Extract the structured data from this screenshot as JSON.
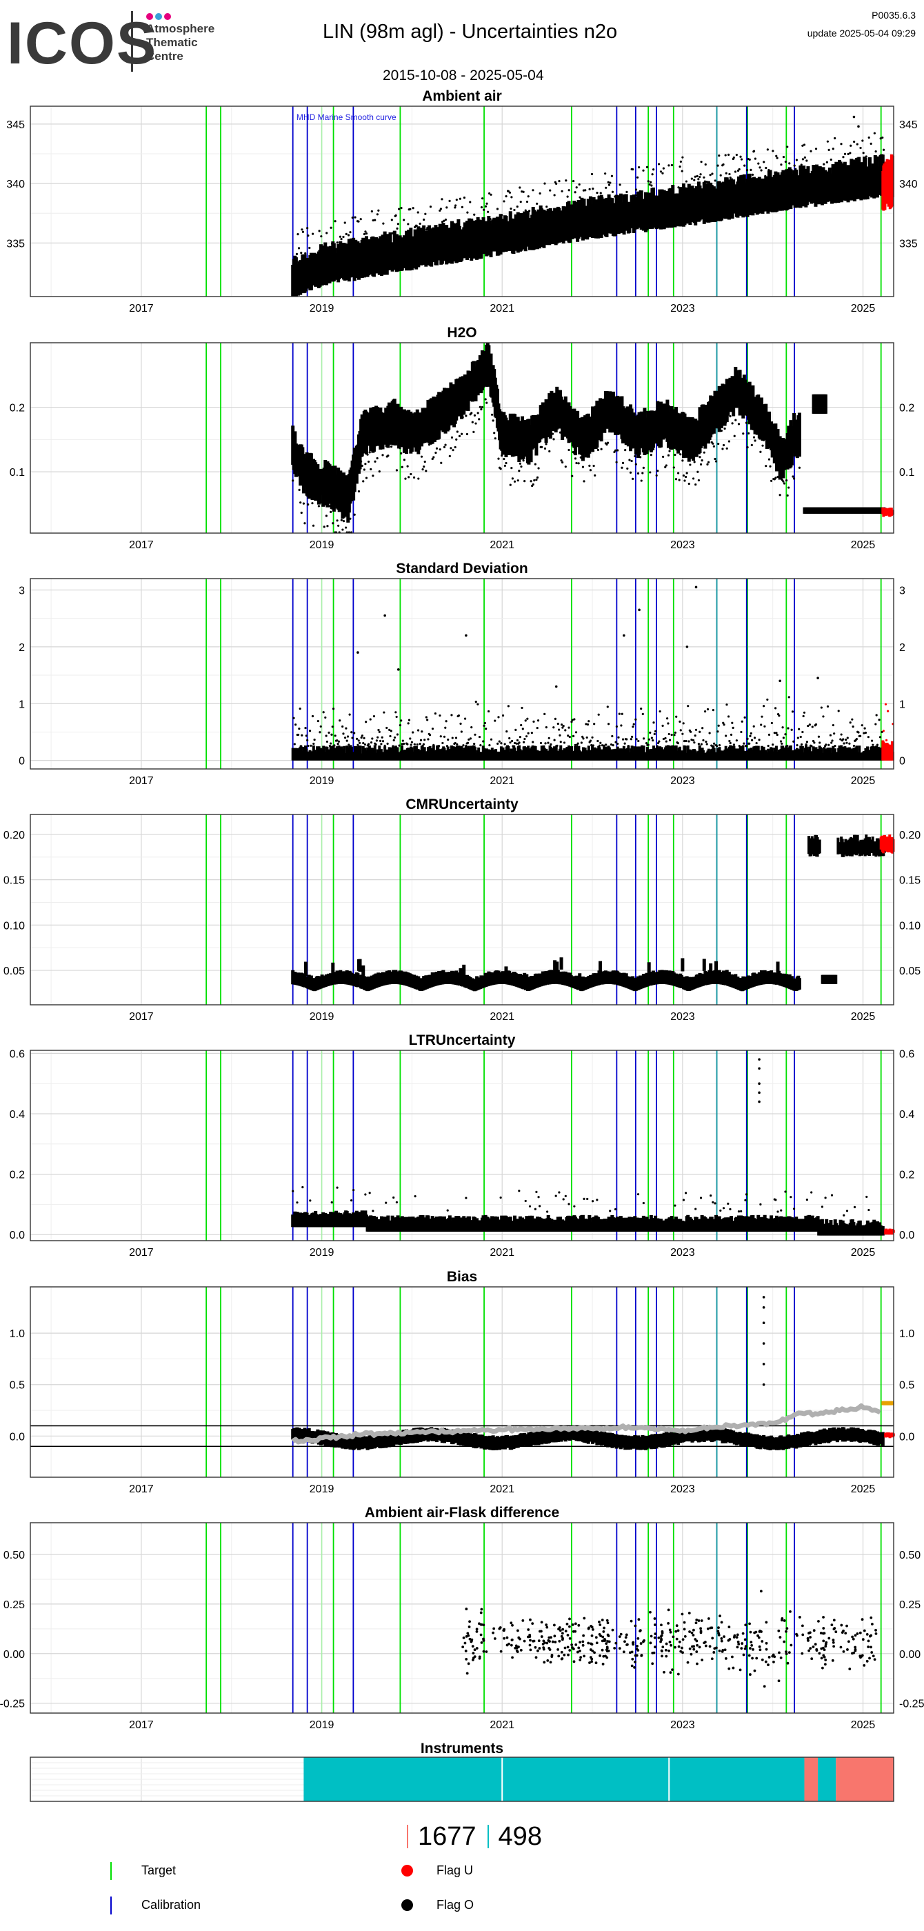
{
  "header": {
    "logo_text": "ICOS",
    "logo_sub": [
      "Atmosphere",
      "Thematic",
      "Centre"
    ],
    "logo_dot_colors": [
      "#e6007e",
      "#3aa0d8",
      "#e6007e"
    ],
    "title": "LIN  (98m agl) - Uncertainties n2o",
    "date_range": "2015-10-08 - 2025-05-04",
    "version": "P0035.6.3",
    "update_label": "update  2025-05-04 09:29"
  },
  "colors": {
    "target": "#00e000",
    "calibration": "#0000cc",
    "flag_u": "#ff0000",
    "flag_o": "#000000",
    "bias_gray": "#b0b0b0",
    "bias_orange": "#e6a000",
    "instrument_teal": "#00bfc4",
    "instrument_salmon": "#f8766d",
    "grid": "#e3e3e3"
  },
  "x_axis": {
    "range": [
      2015.77,
      2025.34
    ],
    "ticks": [
      2017,
      2019,
      2021,
      2023,
      2025
    ],
    "tick_labels": [
      "2017",
      "2019",
      "2021",
      "2023",
      "2025"
    ]
  },
  "events": {
    "target": [
      2017.72,
      2017.88,
      2019.13,
      2019.87,
      2020.8,
      2021.77,
      2022.62,
      2022.9,
      2023.72,
      2024.15,
      2025.2
    ],
    "calibration": [
      2018.68,
      2018.84,
      2019.35,
      2022.27,
      2022.48,
      2022.71,
      2023.38,
      2023.71,
      2024.24
    ],
    "target_faint": [
      2019.0
    ],
    "teal": [
      2023.38
    ]
  },
  "chart_data": [
    {
      "type": "scatter",
      "title": "Ambient air",
      "ylim": [
        330.5,
        346.5
      ],
      "y_ticks": [
        335,
        340,
        345
      ],
      "y_tick_labels": [
        "335",
        "340",
        "345"
      ],
      "annotation": "MHD Marine Smooth curve",
      "kind": "ambient",
      "trend": [
        [
          2018.68,
          332.0
        ],
        [
          2019.0,
          333.0
        ],
        [
          2020.0,
          334.4
        ],
        [
          2021.0,
          335.6
        ],
        [
          2022.0,
          337.0
        ],
        [
          2023.0,
          338.0
        ],
        [
          2024.0,
          339.2
        ],
        [
          2025.0,
          340.3
        ],
        [
          2025.25,
          340.6
        ]
      ],
      "flag_u_range": [
        2025.22,
        2025.34,
        337.5,
        342.5
      ]
    },
    {
      "type": "scatter",
      "title": "H2O",
      "ylim": [
        0.005,
        0.3
      ],
      "y_ticks": [
        0.1,
        0.2
      ],
      "y_tick_labels": [
        "0.1",
        "0.2"
      ],
      "kind": "h2o",
      "trend": [
        [
          2018.68,
          0.14
        ],
        [
          2018.8,
          0.1
        ],
        [
          2019.1,
          0.08
        ],
        [
          2019.3,
          0.06
        ],
        [
          2019.45,
          0.16
        ],
        [
          2019.8,
          0.18
        ],
        [
          2020.0,
          0.16
        ],
        [
          2020.4,
          0.2
        ],
        [
          2020.7,
          0.24
        ],
        [
          2020.85,
          0.27
        ],
        [
          2021.0,
          0.16
        ],
        [
          2021.3,
          0.15
        ],
        [
          2021.6,
          0.2
        ],
        [
          2021.9,
          0.15
        ],
        [
          2022.2,
          0.2
        ],
        [
          2022.5,
          0.16
        ],
        [
          2022.8,
          0.18
        ],
        [
          2023.1,
          0.15
        ],
        [
          2023.4,
          0.2
        ],
        [
          2023.6,
          0.23
        ],
        [
          2023.9,
          0.18
        ],
        [
          2024.1,
          0.12
        ],
        [
          2024.25,
          0.16
        ]
      ],
      "late_low": [
        2024.35,
        2025.34,
        0.035,
        0.045
      ],
      "late_high": [
        2024.45,
        2024.6,
        0.19,
        0.22
      ],
      "flag_u_range": [
        2025.22,
        2025.34,
        0.03,
        0.045
      ]
    },
    {
      "type": "scatter",
      "title": "Standard Deviation",
      "ylim": [
        -0.15,
        3.2
      ],
      "y_ticks": [
        0,
        1,
        2,
        3
      ],
      "y_tick_labels": [
        "0",
        "1",
        "2",
        "3"
      ],
      "kind": "std",
      "outliers": [
        [
          2019.7,
          2.55
        ],
        [
          2020.6,
          2.2
        ],
        [
          2022.35,
          2.2
        ],
        [
          2022.52,
          2.65
        ],
        [
          2023.15,
          3.05
        ],
        [
          2023.05,
          2.0
        ],
        [
          2019.4,
          1.9
        ],
        [
          2019.85,
          1.6
        ],
        [
          2021.6,
          1.3
        ],
        [
          2024.5,
          1.45
        ],
        [
          2024.08,
          1.4
        ]
      ],
      "flag_u_range": [
        2025.22,
        2025.34,
        0.0,
        1.05
      ]
    },
    {
      "type": "scatter",
      "title": "CMRUncertainty",
      "ylim": [
        0.012,
        0.222
      ],
      "y_ticks": [
        0.05,
        0.1,
        0.15,
        0.2
      ],
      "y_tick_labels": [
        "0.05",
        "0.10",
        "0.15",
        "0.20"
      ],
      "kind": "cmr",
      "late_block": [
        2024.4,
        2025.25,
        0.175,
        0.2
      ],
      "late_gap_points": [
        2024.55,
        2024.7,
        0.035,
        0.045
      ],
      "flag_u_range": [
        2025.2,
        2025.34,
        0.178,
        0.2
      ]
    },
    {
      "type": "scatter",
      "title": "LTRUncertainty",
      "ylim": [
        -0.02,
        0.61
      ],
      "y_ticks": [
        0.0,
        0.2,
        0.4,
        0.6
      ],
      "y_tick_labels": [
        "0.0",
        "0.2",
        "0.4",
        "0.6"
      ],
      "kind": "ltr",
      "outliers": [
        [
          2023.85,
          0.58
        ],
        [
          2023.85,
          0.55
        ],
        [
          2023.85,
          0.5
        ],
        [
          2023.85,
          0.47
        ],
        [
          2023.85,
          0.44
        ]
      ],
      "flag_u_range": [
        2025.25,
        2025.34,
        0.0,
        0.02
      ]
    },
    {
      "type": "scatter",
      "title": "Bias",
      "ylim": [
        -0.4,
        1.45
      ],
      "y_ticks": [
        0.0,
        0.5,
        1.0
      ],
      "y_tick_labels": [
        "0.0",
        "0.5",
        "1.0"
      ],
      "hlines": [
        0.1,
        -0.1
      ],
      "kind": "bias",
      "gray_curve": [
        [
          2018.68,
          -0.05
        ],
        [
          2019.5,
          0.02
        ],
        [
          2020.5,
          0.05
        ],
        [
          2021.5,
          0.07
        ],
        [
          2022.5,
          0.08
        ],
        [
          2023.0,
          0.05
        ],
        [
          2023.5,
          0.1
        ],
        [
          2024.0,
          0.12
        ],
        [
          2024.3,
          0.22
        ],
        [
          2024.6,
          0.23
        ],
        [
          2025.0,
          0.28
        ],
        [
          2025.2,
          0.24
        ]
      ],
      "orange_range": [
        2025.22,
        2025.34,
        0.3,
        0.34
      ],
      "outliers": [
        [
          2023.9,
          1.35
        ],
        [
          2023.9,
          1.25
        ],
        [
          2023.9,
          1.1
        ],
        [
          2023.9,
          0.9
        ],
        [
          2023.9,
          0.7
        ],
        [
          2023.9,
          0.5
        ]
      ],
      "flag_u_range": [
        2025.25,
        2025.34,
        -0.02,
        0.04
      ]
    },
    {
      "type": "scatter",
      "title": "Ambient air-Flask difference",
      "ylim": [
        -0.3,
        0.66
      ],
      "y_ticks": [
        -0.25,
        0.0,
        0.25,
        0.5
      ],
      "y_tick_labels": [
        "-0.25",
        "0.00",
        "0.25",
        "0.50"
      ],
      "kind": "flask",
      "x_start": 2020.55,
      "x_end": 2025.15
    }
  ],
  "instruments": {
    "title": "Instruments",
    "segments": [
      {
        "start": 2018.8,
        "end": 2024.35,
        "color": "#00bfc4"
      },
      {
        "start": 2024.35,
        "end": 2024.5,
        "color": "#f8766d"
      },
      {
        "start": 2024.5,
        "end": 2024.7,
        "color": "#00bfc4"
      },
      {
        "start": 2024.7,
        "end": 2025.34,
        "color": "#f8766d"
      }
    ],
    "white_lines": [
      2021.0,
      2022.85
    ]
  },
  "counts": [
    {
      "value": "1677",
      "color": "#f8766d"
    },
    {
      "value": "498",
      "color": "#00bfc4"
    }
  ],
  "legend": [
    {
      "label": "Target",
      "kind": "line",
      "color": "#00e000"
    },
    {
      "label": "Calibration",
      "kind": "line",
      "color": "#0000cc"
    },
    {
      "label": "Flag U",
      "kind": "dot",
      "color": "#ff0000"
    },
    {
      "label": "Flag O",
      "kind": "dot",
      "color": "#000000"
    }
  ]
}
